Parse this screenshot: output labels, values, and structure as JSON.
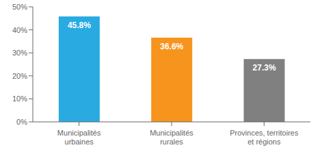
{
  "chart_data": {
    "type": "bar",
    "categories": [
      "Municipalités\nurbaines",
      "Municipalités\nrurales",
      "Provinces, territoires\net régions"
    ],
    "values": [
      45.8,
      36.6,
      27.3
    ],
    "value_labels": [
      "45.8%",
      "36.6%",
      "27.3%"
    ],
    "data_labels": true,
    "colors": [
      "#29ABE2",
      "#F7941D",
      "#808080"
    ],
    "ylim": [
      0,
      50
    ],
    "yticks": [
      {
        "value": 0,
        "label": "0%"
      },
      {
        "value": 10,
        "label": "10%"
      },
      {
        "value": 20,
        "label": "20%"
      },
      {
        "value": 30,
        "label": "30%"
      },
      {
        "value": 40,
        "label": "40%"
      },
      {
        "value": 50,
        "label": "50%"
      }
    ],
    "grid": false
  }
}
